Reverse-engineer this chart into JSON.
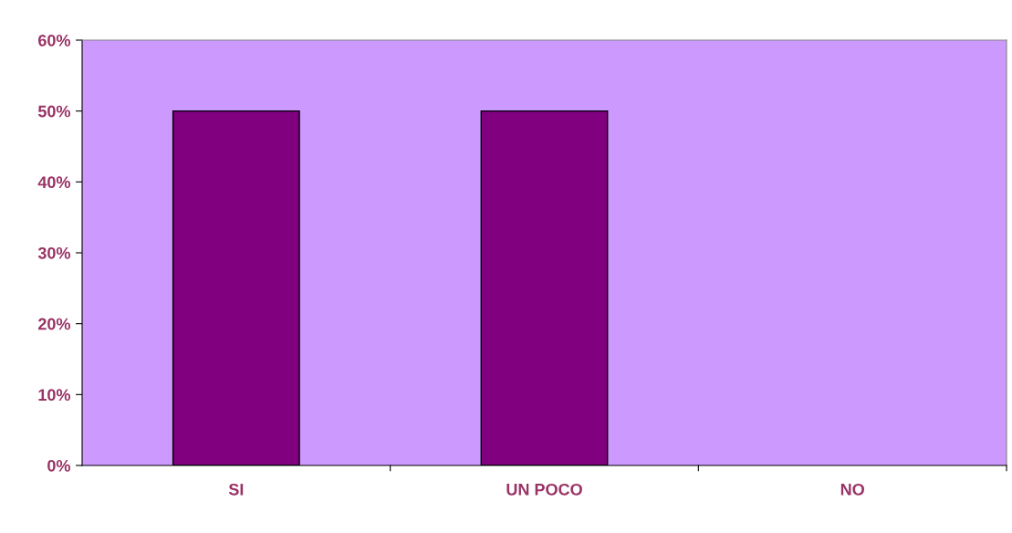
{
  "chart_data": {
    "type": "bar",
    "categories": [
      "SI",
      "UN POCO",
      "NO"
    ],
    "values": [
      50,
      50,
      0
    ],
    "color": "#800080",
    "ylim": [
      0,
      60
    ],
    "yticks": [
      {
        "value": 0,
        "label": "0%"
      },
      {
        "value": 10,
        "label": "10%"
      },
      {
        "value": 20,
        "label": "20%"
      },
      {
        "value": 30,
        "label": "30%"
      },
      {
        "value": 40,
        "label": "40%"
      },
      {
        "value": 50,
        "label": "50%"
      },
      {
        "value": 60,
        "label": "60%"
      }
    ],
    "grid": false,
    "legend": false
  }
}
